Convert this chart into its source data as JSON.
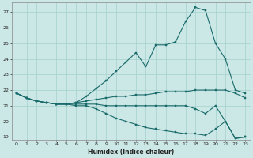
{
  "xlabel": "Humidex (Indice chaleur)",
  "background_color": "#cce8e6",
  "grid_color": "#aad4d0",
  "line_color": "#1a6b6b",
  "xlim": [
    -0.5,
    23.5
  ],
  "ylim": [
    18.8,
    27.6
  ],
  "yticks": [
    19,
    20,
    21,
    22,
    23,
    24,
    25,
    26,
    27
  ],
  "xticks": [
    0,
    1,
    2,
    3,
    4,
    5,
    6,
    7,
    8,
    9,
    10,
    11,
    12,
    13,
    14,
    15,
    16,
    17,
    18,
    19,
    20,
    21,
    22,
    23
  ],
  "curve1_y": [
    21.8,
    21.5,
    21.3,
    21.2,
    21.1,
    21.1,
    21.2,
    21.6,
    22.1,
    22.6,
    23.2,
    23.8,
    24.4,
    23.5,
    24.9,
    24.9,
    25.1,
    26.4,
    27.3,
    27.1,
    25.0,
    24.0,
    22.0,
    21.8
  ],
  "curve2_y": [
    21.8,
    21.5,
    21.3,
    21.2,
    21.1,
    21.1,
    21.2,
    21.3,
    21.4,
    21.5,
    21.6,
    21.6,
    21.7,
    21.7,
    21.8,
    21.9,
    21.9,
    21.9,
    22.0,
    22.0,
    22.0,
    22.0,
    21.8,
    21.5
  ],
  "curve3_y": [
    21.8,
    21.5,
    21.3,
    21.2,
    21.1,
    21.1,
    21.1,
    21.1,
    21.1,
    21.0,
    21.0,
    21.0,
    21.0,
    21.0,
    21.0,
    21.0,
    21.0,
    21.0,
    20.8,
    20.5,
    21.0,
    20.0,
    18.9,
    19.0
  ],
  "curve4_y": [
    21.8,
    21.5,
    21.3,
    21.2,
    21.1,
    21.1,
    21.0,
    21.0,
    20.8,
    20.5,
    20.2,
    20.0,
    19.8,
    19.6,
    19.5,
    19.4,
    19.3,
    19.2,
    19.2,
    19.1,
    19.5,
    20.0,
    18.9,
    19.0
  ]
}
